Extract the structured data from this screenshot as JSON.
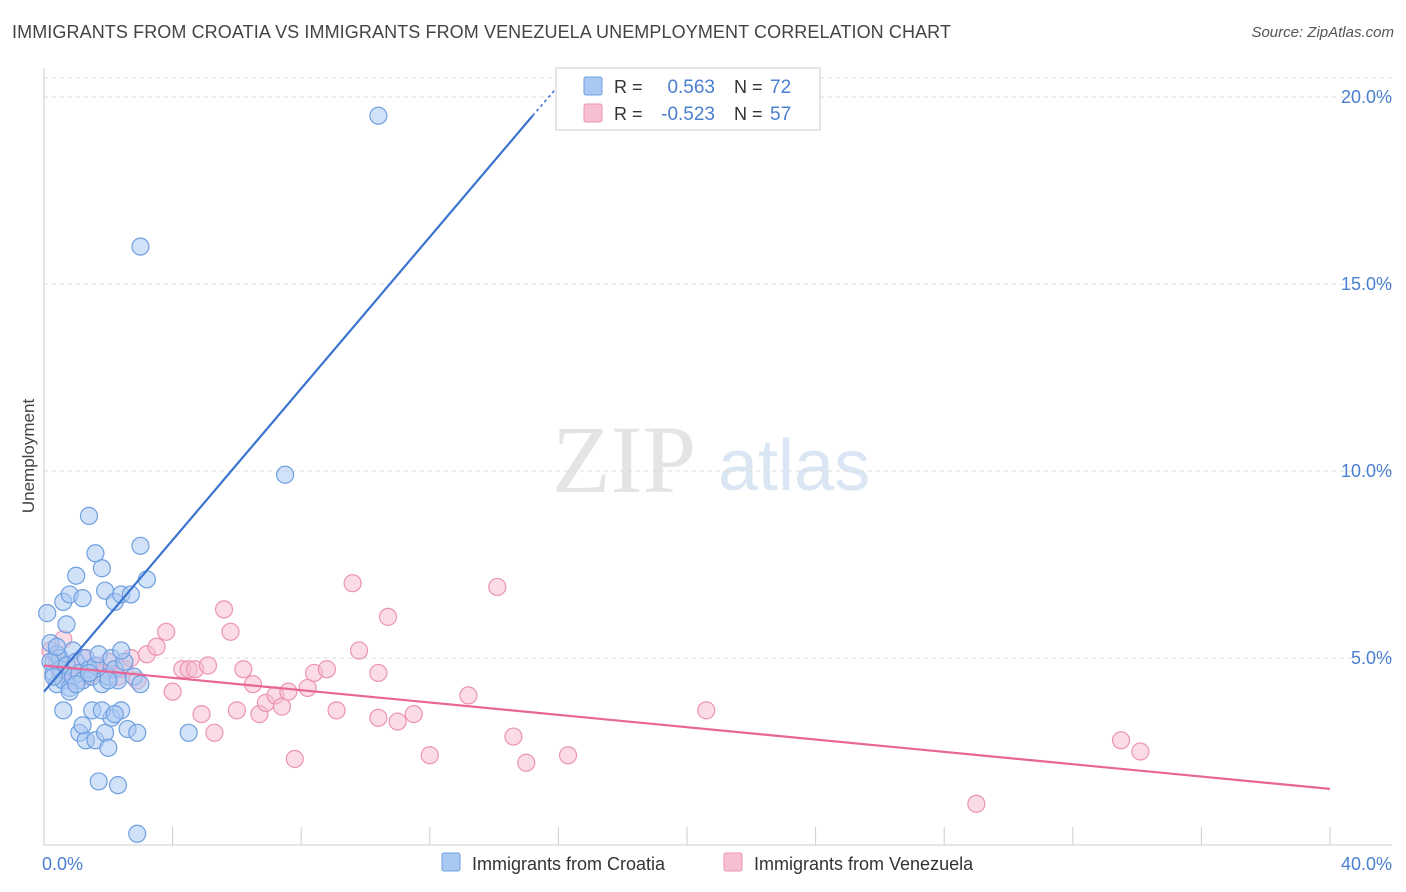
{
  "header": {
    "title": "IMMIGRANTS FROM CROATIA VS IMMIGRANTS FROM VENEZUELA UNEMPLOYMENT CORRELATION CHART",
    "source": "Source: ZipAtlas.com"
  },
  "watermark": {
    "zip": "ZIP",
    "atlas": "atlas"
  },
  "stats": {
    "croatia": {
      "r_label": "R =",
      "r_value": "0.563",
      "n_label": "N =",
      "n_value": "72"
    },
    "venezuela": {
      "r_label": "R =",
      "r_value": "-0.523",
      "n_label": "N =",
      "n_value": "57"
    }
  },
  "colors": {
    "croatia_fill": "#a9c8f2",
    "croatia_stroke": "#6f9fe0",
    "croatia_line": "#3a74d0",
    "venezuela_fill": "#f7bfd2",
    "venezuela_stroke": "#ec93b2",
    "venezuela_line": "#e86596",
    "grid": "#dddddd",
    "axis": "#cccccc",
    "tick_text": "#4a7fd0"
  },
  "chart_data": {
    "type": "scatter",
    "title": "IMMIGRANTS FROM CROATIA VS IMMIGRANTS FROM VENEZUELA UNEMPLOYMENT CORRELATION CHART",
    "xlabel": "",
    "ylabel": "Unemployment",
    "xlim": [
      0,
      40
    ],
    "ylim": [
      0,
      20
    ],
    "x_tick_labels": {
      "min": "0.0%",
      "max": "40.0%"
    },
    "y_ticks": [
      {
        "value": 5,
        "label": "5.0%"
      },
      {
        "value": 10,
        "label": "10.0%"
      },
      {
        "value": 15,
        "label": "15.0%"
      },
      {
        "value": 20,
        "label": "20.0%"
      }
    ],
    "grid": true,
    "legend_position": "bottom-center",
    "series": [
      {
        "name": "Immigrants from Croatia",
        "r": 0.563,
        "n": 72,
        "trend": {
          "x0": 0.0,
          "y0": 4.1,
          "x1": 15.2,
          "y1": 19.5,
          "dash_to_x": 16.0,
          "dash_to_y": 20.3
        },
        "points": [
          [
            0.1,
            6.2
          ],
          [
            0.2,
            5.4
          ],
          [
            0.3,
            4.9
          ],
          [
            0.3,
            4.6
          ],
          [
            0.4,
            4.3
          ],
          [
            0.4,
            5.1
          ],
          [
            0.5,
            5.0
          ],
          [
            0.5,
            4.7
          ],
          [
            0.6,
            4.4
          ],
          [
            0.6,
            6.5
          ],
          [
            0.7,
            5.9
          ],
          [
            0.7,
            4.8
          ],
          [
            0.8,
            4.2
          ],
          [
            0.8,
            6.7
          ],
          [
            0.9,
            5.2
          ],
          [
            0.9,
            4.5
          ],
          [
            1.0,
            4.9
          ],
          [
            1.0,
            7.2
          ],
          [
            1.1,
            4.6
          ],
          [
            1.1,
            3.0
          ],
          [
            1.2,
            4.4
          ],
          [
            1.2,
            6.6
          ],
          [
            1.3,
            5.0
          ],
          [
            1.3,
            2.8
          ],
          [
            1.4,
            4.7
          ],
          [
            1.4,
            8.8
          ],
          [
            1.5,
            4.5
          ],
          [
            1.5,
            3.6
          ],
          [
            1.6,
            4.8
          ],
          [
            1.6,
            2.8
          ],
          [
            1.7,
            5.1
          ],
          [
            1.7,
            1.7
          ],
          [
            1.8,
            4.3
          ],
          [
            1.8,
            7.4
          ],
          [
            1.9,
            3.0
          ],
          [
            1.9,
            6.8
          ],
          [
            2.0,
            4.5
          ],
          [
            2.0,
            2.6
          ],
          [
            2.1,
            5.0
          ],
          [
            2.1,
            3.4
          ],
          [
            2.2,
            4.7
          ],
          [
            2.2,
            6.5
          ],
          [
            2.3,
            4.4
          ],
          [
            2.3,
            1.6
          ],
          [
            2.4,
            3.6
          ],
          [
            2.4,
            6.7
          ],
          [
            2.5,
            4.9
          ],
          [
            2.6,
            3.1
          ],
          [
            2.7,
            6.7
          ],
          [
            2.8,
            4.5
          ],
          [
            2.9,
            3.0
          ],
          [
            3.0,
            4.3
          ],
          [
            3.2,
            7.1
          ],
          [
            3.0,
            16.0
          ],
          [
            0.2,
            4.9
          ],
          [
            0.4,
            5.3
          ],
          [
            0.6,
            3.6
          ],
          [
            0.8,
            4.1
          ],
          [
            1.0,
            4.3
          ],
          [
            1.2,
            3.2
          ],
          [
            1.4,
            4.6
          ],
          [
            1.6,
            7.8
          ],
          [
            1.8,
            3.6
          ],
          [
            2.0,
            4.4
          ],
          [
            2.2,
            3.5
          ],
          [
            2.4,
            5.2
          ],
          [
            3.0,
            8.0
          ],
          [
            2.9,
            0.3
          ],
          [
            4.5,
            3.0
          ],
          [
            7.5,
            9.9
          ],
          [
            10.4,
            19.5
          ],
          [
            0.3,
            4.5
          ]
        ]
      },
      {
        "name": "Immigrants from Venezuela",
        "r": -0.523,
        "n": 57,
        "trend": {
          "x0": 0.0,
          "y0": 4.8,
          "x1": 40.0,
          "y1": 1.5
        },
        "points": [
          [
            0.2,
            5.2
          ],
          [
            0.4,
            4.9
          ],
          [
            0.5,
            4.6
          ],
          [
            0.6,
            5.5
          ],
          [
            0.8,
            4.7
          ],
          [
            1.0,
            4.4
          ],
          [
            1.2,
            5.0
          ],
          [
            1.4,
            4.5
          ],
          [
            1.6,
            4.8
          ],
          [
            1.8,
            4.6
          ],
          [
            2.0,
            4.9
          ],
          [
            2.3,
            4.5
          ],
          [
            2.5,
            4.7
          ],
          [
            2.7,
            5.0
          ],
          [
            2.9,
            4.4
          ],
          [
            3.2,
            5.1
          ],
          [
            3.5,
            5.3
          ],
          [
            3.8,
            5.7
          ],
          [
            4.0,
            4.1
          ],
          [
            4.3,
            4.7
          ],
          [
            4.5,
            4.7
          ],
          [
            4.7,
            4.7
          ],
          [
            4.9,
            3.5
          ],
          [
            5.1,
            4.8
          ],
          [
            5.3,
            3.0
          ],
          [
            5.6,
            6.3
          ],
          [
            5.8,
            5.7
          ],
          [
            6.0,
            3.6
          ],
          [
            6.2,
            4.7
          ],
          [
            6.5,
            4.3
          ],
          [
            6.7,
            3.5
          ],
          [
            6.9,
            3.8
          ],
          [
            7.2,
            4.0
          ],
          [
            7.4,
            3.7
          ],
          [
            7.6,
            4.1
          ],
          [
            7.8,
            2.3
          ],
          [
            8.2,
            4.2
          ],
          [
            8.4,
            4.6
          ],
          [
            8.8,
            4.7
          ],
          [
            9.1,
            3.6
          ],
          [
            9.6,
            7.0
          ],
          [
            9.8,
            5.2
          ],
          [
            10.4,
            3.4
          ],
          [
            10.7,
            6.1
          ],
          [
            11.0,
            3.3
          ],
          [
            11.5,
            3.5
          ],
          [
            12.0,
            2.4
          ],
          [
            13.2,
            4.0
          ],
          [
            14.1,
            6.9
          ],
          [
            14.6,
            2.9
          ],
          [
            15.0,
            2.2
          ],
          [
            16.3,
            2.4
          ],
          [
            20.6,
            3.6
          ],
          [
            29.0,
            1.1
          ],
          [
            33.5,
            2.8
          ],
          [
            34.1,
            2.5
          ],
          [
            10.4,
            4.6
          ]
        ]
      }
    ]
  }
}
